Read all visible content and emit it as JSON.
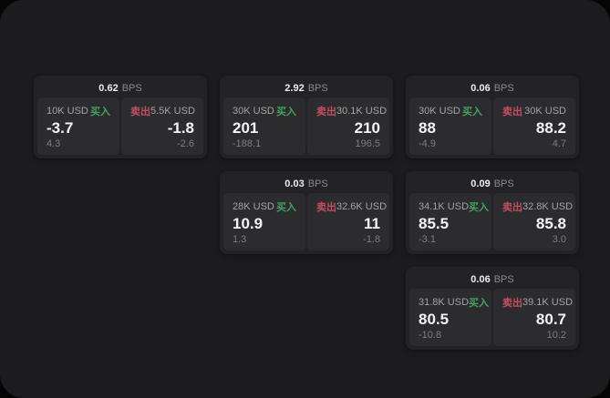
{
  "labels": {
    "bps_unit": "BPS",
    "buy": "买入",
    "sell": "卖出"
  },
  "colors": {
    "page_background": "#050505",
    "window_background": "#1c1c1e",
    "card_background": "#232325",
    "cell_background": "#2c2c2e",
    "buy_green": "#44a164",
    "sell_red": "#c24f63",
    "value_white": "#f4f4f5",
    "muted_gray": "#7d7d82"
  },
  "cards": [
    {
      "bps": "0.62",
      "buy": {
        "amount": "10K USD",
        "value": "-3.7",
        "delta": "4.3"
      },
      "sell": {
        "amount": "5.5K USD",
        "value": "-1.8",
        "delta": "-2.6"
      }
    },
    {
      "bps": "2.92",
      "buy": {
        "amount": "30K USD",
        "value": "201",
        "delta": "-188.1"
      },
      "sell": {
        "amount": "30.1K USD",
        "value": "210",
        "delta": "196.5"
      }
    },
    {
      "bps": "0.06",
      "buy": {
        "amount": "30K USD",
        "value": "88",
        "delta": "-4.9"
      },
      "sell": {
        "amount": "30K USD",
        "value": "88.2",
        "delta": "4.7"
      }
    },
    {
      "bps": "0.03",
      "buy": {
        "amount": "28K USD",
        "value": "10.9",
        "delta": "1.3"
      },
      "sell": {
        "amount": "32.6K USD",
        "value": "11",
        "delta": "-1.8"
      }
    },
    {
      "bps": "0.09",
      "buy": {
        "amount": "34.1K USD",
        "value": "85.5",
        "delta": "-3.1"
      },
      "sell": {
        "amount": "32.8K USD",
        "value": "85.8",
        "delta": "3.0"
      }
    },
    {
      "bps": "0.06",
      "buy": {
        "amount": "31.8K USD",
        "value": "80.5",
        "delta": "-10.8"
      },
      "sell": {
        "amount": "39.1K USD",
        "value": "80.7",
        "delta": "10.2"
      }
    }
  ]
}
